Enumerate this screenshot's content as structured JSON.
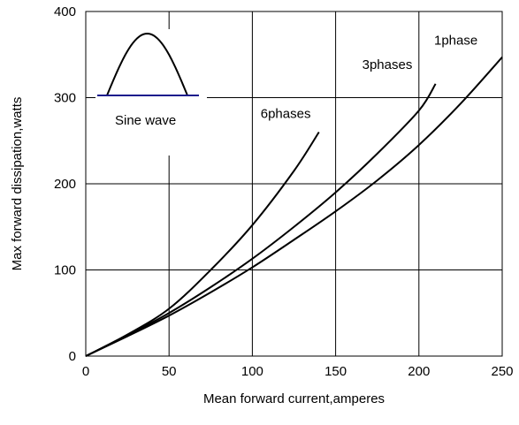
{
  "chart_data": {
    "type": "line",
    "xlabel": "Mean forward current,amperes",
    "ylabel": "Max forward dissipation,watts",
    "xlim": [
      0,
      250
    ],
    "ylim": [
      0,
      400
    ],
    "x_ticks": [
      "0",
      "50",
      "100",
      "150",
      "200",
      "250"
    ],
    "y_ticks": [
      "0",
      "100",
      "200",
      "300",
      "400"
    ],
    "grid": true,
    "series": [
      {
        "name": "6phases",
        "x": [
          0,
          25,
          50,
          75,
          100,
          125,
          140
        ],
        "y": [
          0,
          25,
          55,
          100,
          152,
          215,
          260
        ]
      },
      {
        "name": "3phases",
        "x": [
          0,
          25,
          50,
          75,
          100,
          125,
          150,
          175,
          200,
          210
        ],
        "y": [
          0,
          24,
          50,
          80,
          113,
          150,
          190,
          235,
          285,
          316
        ]
      },
      {
        "name": "1phase",
        "x": [
          0,
          25,
          50,
          75,
          100,
          125,
          150,
          175,
          200,
          225,
          250
        ],
        "y": [
          0,
          23,
          47,
          74,
          103,
          135,
          168,
          204,
          245,
          293,
          347
        ]
      }
    ],
    "inset": {
      "label": "Sine wave"
    }
  }
}
